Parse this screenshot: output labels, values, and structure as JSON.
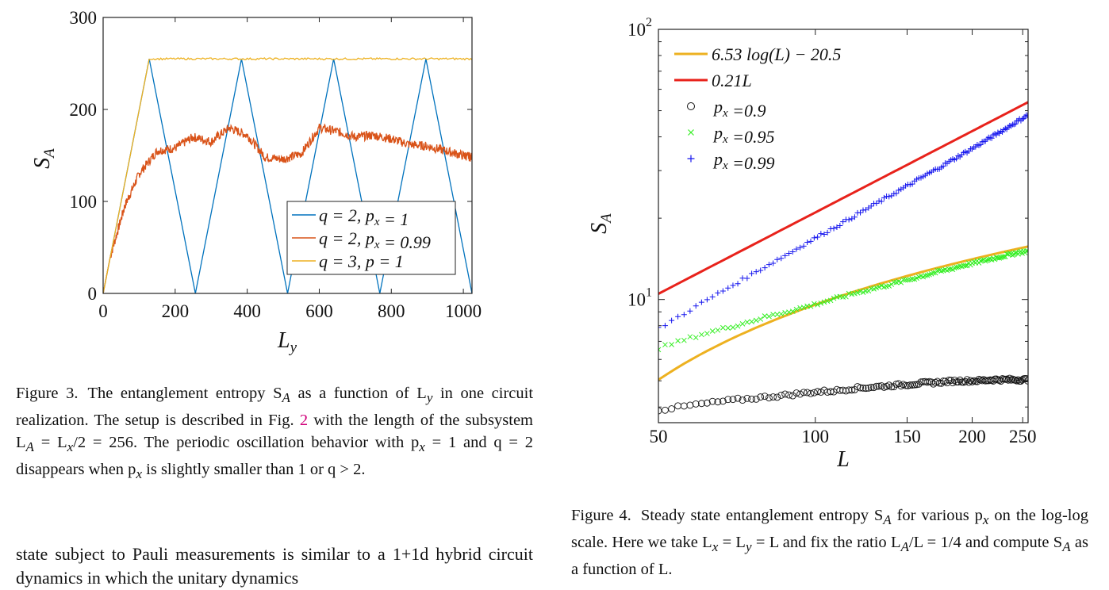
{
  "figure3": {
    "chart_data": {
      "type": "line",
      "xlabel": "L_y",
      "ylabel": "S_A",
      "xlim": [
        0,
        1024
      ],
      "ylim": [
        0,
        300
      ],
      "xticks": [
        0,
        200,
        400,
        600,
        800,
        1000
      ],
      "yticks": [
        0,
        100,
        200,
        300
      ],
      "grid": false,
      "legend_position": "lower-right",
      "series": [
        {
          "name": "q = 2, p_x = 1",
          "color": "#0072bd",
          "x": [
            0,
            128,
            256,
            384,
            512,
            640,
            768,
            896,
            1024
          ],
          "y": [
            0,
            255,
            0,
            255,
            0,
            255,
            0,
            255,
            0
          ]
        },
        {
          "name": "q = 2, p_x = 0.99",
          "color": "#d95319",
          "x": [
            0,
            20,
            60,
            100,
            150,
            200,
            250,
            300,
            350,
            400,
            450,
            500,
            550,
            600,
            650,
            700,
            750,
            800,
            850,
            900,
            950,
            1000,
            1024
          ],
          "y": [
            0,
            40,
            95,
            130,
            155,
            158,
            170,
            165,
            180,
            172,
            148,
            146,
            152,
            180,
            176,
            170,
            172,
            168,
            162,
            160,
            155,
            150,
            148
          ]
        },
        {
          "name": "q = 3, p = 1",
          "color": "#edb120",
          "x": [
            0,
            128,
            1024
          ],
          "y": [
            0,
            255,
            255
          ]
        }
      ]
    },
    "caption": {
      "label": "Figure 3.",
      "part1": "The entanglement entropy S",
      "sub1": "A",
      "part2": " as a function of L",
      "sub2": "y",
      "part3": " in one circuit realization. The setup is described in Fig.",
      "ref": "2",
      "part4": " with the length of the subsystem L",
      "sub3": "A",
      "part5": " = L",
      "sub4": "x",
      "part6": "/2 = 256. The periodic oscillation behavior with p",
      "sub5": "x",
      "part7": " = 1 and q = 2 disappears when p",
      "sub6": "x",
      "part8": " is slightly smaller than 1 or q > 2."
    }
  },
  "figure4": {
    "chart_data": {
      "type": "scatter",
      "xlabel": "L",
      "ylabel": "S_A",
      "xscale": "log",
      "yscale": "log",
      "xlim": [
        50,
        256
      ],
      "ylim": [
        3.5,
        100
      ],
      "xticks": [
        50,
        100,
        150,
        200,
        250
      ],
      "yticks": [
        "10^1",
        "10^2"
      ],
      "grid": false,
      "legend_position": "top-left",
      "series": [
        {
          "name": "6.53 log(L) − 20.5",
          "kind": "line",
          "color": "#edb120",
          "fit": {
            "a": 6.53,
            "b": -20.5
          }
        },
        {
          "name": "0.21L",
          "kind": "line",
          "color": "#e8221b",
          "fit": {
            "slope": 0.21
          }
        },
        {
          "name": "p_x =0.9",
          "kind": "marker-circle",
          "color": "#111111",
          "x": [
            50,
            60,
            70,
            80,
            90,
            100,
            110,
            120,
            130,
            140,
            150,
            160,
            170,
            180,
            190,
            200,
            210,
            220,
            230,
            240,
            250,
            256
          ],
          "y": [
            3.9,
            4.1,
            4.25,
            4.35,
            4.45,
            4.55,
            4.6,
            4.7,
            4.75,
            4.8,
            4.85,
            4.9,
            4.93,
            4.97,
            5.0,
            5.0,
            5.02,
            5.05,
            5.05,
            5.05,
            5.05,
            5.05
          ]
        },
        {
          "name": "p_x =0.95",
          "kind": "marker-x",
          "color": "#33ee22",
          "x": [
            50,
            60,
            70,
            80,
            90,
            100,
            110,
            120,
            130,
            140,
            150,
            160,
            170,
            180,
            190,
            200,
            210,
            220,
            230,
            240,
            250,
            256
          ],
          "y": [
            6.6,
            7.4,
            8.0,
            8.6,
            9.1,
            9.6,
            10.1,
            10.6,
            11.0,
            11.4,
            11.8,
            12.2,
            12.6,
            12.9,
            13.3,
            13.6,
            13.9,
            14.2,
            14.5,
            14.8,
            15.0,
            15.1
          ]
        },
        {
          "name": "p_x =0.99",
          "kind": "marker-plus",
          "color": "#1515ee",
          "x": [
            50,
            60,
            70,
            80,
            90,
            100,
            110,
            120,
            130,
            140,
            150,
            160,
            170,
            180,
            190,
            200,
            210,
            220,
            230,
            240,
            250,
            256
          ],
          "y": [
            7.8,
            9.6,
            11.4,
            13.2,
            15.0,
            16.9,
            18.7,
            20.6,
            22.5,
            24.4,
            26.3,
            28.3,
            30.2,
            32.2,
            34.2,
            36.2,
            38.3,
            40.4,
            42.5,
            44.7,
            46.9,
            48.3
          ]
        }
      ]
    },
    "caption": {
      "label": "Figure 4.",
      "part1": "Steady state entanglement entropy S",
      "sub1": "A",
      "part2": " for various p",
      "sub2": "x",
      "part3": " on the log-log scale. Here we take L",
      "sub3": "x",
      "part4": " = L",
      "sub4": "y",
      "part5": " = L and fix the ratio L",
      "sub5": "A",
      "part6": "/L = 1/4 and compute S",
      "sub6": "A",
      "part7": " as a function of L."
    }
  },
  "body_text": "state subject to Pauli measurements is similar to a 1+1d hybrid circuit dynamics in which the unitary dynamics"
}
